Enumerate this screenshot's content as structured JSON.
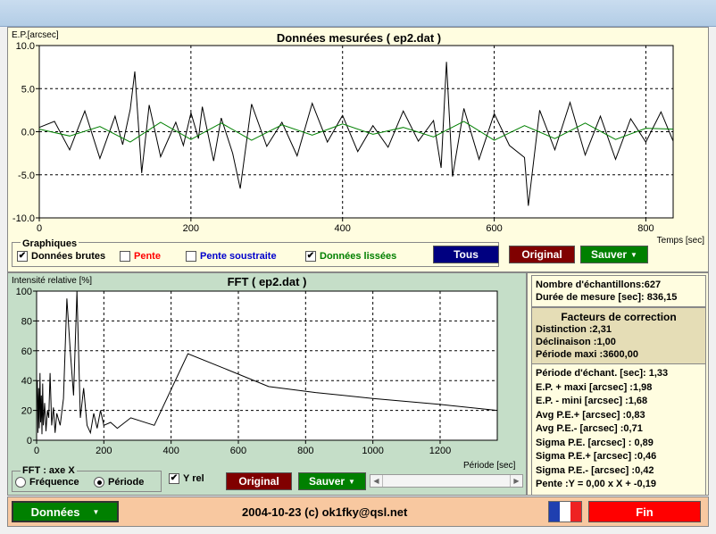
{
  "top_chart": {
    "title": "Données mesurées ( ep2.dat )",
    "ylabel": "E.P.[arcsec]",
    "xlabel": "Temps [sec]",
    "y_ticks": [
      "10.0",
      "5.0",
      "0.0",
      "-5.0",
      "-10.0"
    ],
    "x_ticks": [
      "0",
      "200",
      "400",
      "600",
      "800"
    ]
  },
  "graphiques": {
    "label": "Graphiques",
    "checks": [
      {
        "label": "Données brutes",
        "checked": true,
        "color": "#000000"
      },
      {
        "label": "Pente",
        "checked": false,
        "color": "#ff0000"
      },
      {
        "label": "Pente soustraite",
        "checked": false,
        "color": "#0000cc"
      },
      {
        "label": "Données lissées",
        "checked": true,
        "color": "#008000"
      }
    ],
    "buttons": {
      "tous": "Tous",
      "original": "Original",
      "sauver": "Sauver"
    }
  },
  "fft_chart": {
    "title": "FFT ( ep2.dat )",
    "ylabel": "Intensité relative [%]",
    "xlabel": "Période [sec]",
    "y_ticks": [
      "100",
      "80",
      "60",
      "40",
      "20",
      "0"
    ],
    "x_ticks": [
      "0",
      "200",
      "400",
      "600",
      "800",
      "1000",
      "1200"
    ]
  },
  "fft_controls": {
    "group_label": "FFT : axe X",
    "radio_freq": "Fréquence",
    "radio_period": "Période",
    "selected": "Période",
    "yrel_label": "Y rel",
    "yrel_checked": true,
    "original": "Original",
    "sauver": "Sauver"
  },
  "info": {
    "samples": "Nombre d'échantillons:627",
    "duration": "Durée de mesure [sec]: 836,15",
    "correction_title": "Facteurs de correction",
    "distinction": "Distinction :2,31",
    "declinaison": "Déclinaison :1,00",
    "periode_maxi": "Période maxi :3600,00",
    "stats": [
      "Période d'échant. [sec]: 1,33",
      "E.P. + maxi [arcsec] :1,98",
      "E.P. - mini [arcsec] :1,68",
      "Avg P.E.+ [arcsec] :0,83",
      "Avg P.E.- [arcsec] :0,71",
      "Sigma P.E. [arcsec] : 0,89",
      "Sigma P.E.+ [arcsec] :0,46",
      "Sigma P.E.- [arcsec] :0,42",
      "Pente :Y = 0,00 x X + -0,19"
    ]
  },
  "bottom": {
    "donnees": "Données",
    "footer": "2004-10-23 (c) ok1fky@qsl.net",
    "fin": "Fin"
  },
  "chart_data": [
    {
      "type": "line",
      "title": "Données mesurées ( ep2.dat )",
      "xlabel": "Temps [sec]",
      "ylabel": "E.P.[arcsec]",
      "xlim": [
        0,
        836
      ],
      "ylim": [
        -10,
        10
      ],
      "grid": true,
      "series": [
        {
          "name": "Données brutes",
          "color": "#000000",
          "x": [
            0,
            20,
            40,
            60,
            80,
            100,
            110,
            120,
            126,
            135,
            145,
            160,
            180,
            190,
            200,
            210,
            215,
            230,
            240,
            255,
            265,
            280,
            300,
            320,
            340,
            360,
            380,
            400,
            420,
            440,
            460,
            480,
            500,
            520,
            530,
            537,
            545,
            560,
            580,
            600,
            620,
            640,
            645,
            660,
            680,
            700,
            720,
            740,
            760,
            780,
            800,
            820,
            836
          ],
          "y": [
            0.5,
            1.2,
            -2.1,
            2.4,
            -3.1,
            1.8,
            -1.5,
            2.6,
            7.0,
            -4.8,
            3.1,
            -2.9,
            1.1,
            -1.6,
            2.2,
            -0.8,
            2.9,
            -3.4,
            1.6,
            -2.5,
            -6.6,
            3.2,
            -1.7,
            1.1,
            -2.8,
            3.3,
            -1.2,
            1.9,
            -2.3,
            0.7,
            -1.8,
            2.4,
            -1.1,
            1.3,
            -4.2,
            8.1,
            -5.2,
            2.7,
            -3.2,
            2.1,
            -1.6,
            -3.0,
            -8.6,
            2.5,
            -2.1,
            3.4,
            -2.7,
            1.8,
            -3.2,
            1.5,
            -1.2,
            2.3,
            -1.1
          ]
        },
        {
          "name": "Données lissées",
          "color": "#008000",
          "x": [
            0,
            40,
            80,
            120,
            160,
            200,
            240,
            280,
            320,
            360,
            400,
            440,
            480,
            520,
            560,
            600,
            640,
            680,
            720,
            760,
            800,
            836
          ],
          "y": [
            0.3,
            -0.5,
            0.6,
            -1.2,
            1.1,
            -0.9,
            1.0,
            -1.0,
            0.8,
            -0.4,
            0.9,
            -0.3,
            0.5,
            -0.6,
            1.2,
            -1.0,
            0.7,
            -0.8,
            1.0,
            -0.9,
            0.4,
            0.3
          ]
        }
      ]
    },
    {
      "type": "line",
      "title": "FFT ( ep2.dat )",
      "xlabel": "Période [sec]",
      "ylabel": "Intensité relative [%]",
      "xlim": [
        0,
        1370
      ],
      "ylim": [
        0,
        100
      ],
      "grid": true,
      "series": [
        {
          "name": "",
          "color": "#000000",
          "x": [
            2,
            4,
            6,
            8,
            10,
            12,
            14,
            16,
            18,
            20,
            24,
            28,
            32,
            36,
            40,
            45,
            50,
            55,
            60,
            70,
            80,
            90,
            100,
            110,
            120,
            130,
            140,
            150,
            160,
            170,
            180,
            190,
            200,
            220,
            240,
            280,
            350,
            450,
            560,
            690,
            830,
            1000,
            1200,
            1370
          ],
          "y": [
            40,
            5,
            35,
            8,
            45,
            12,
            30,
            4,
            38,
            10,
            25,
            6,
            20,
            15,
            45,
            10,
            22,
            5,
            18,
            10,
            28,
            95,
            60,
            30,
            100,
            15,
            35,
            10,
            5,
            18,
            8,
            20,
            10,
            12,
            8,
            15,
            10,
            58,
            48,
            36,
            32,
            28,
            24,
            20
          ]
        }
      ]
    }
  ]
}
